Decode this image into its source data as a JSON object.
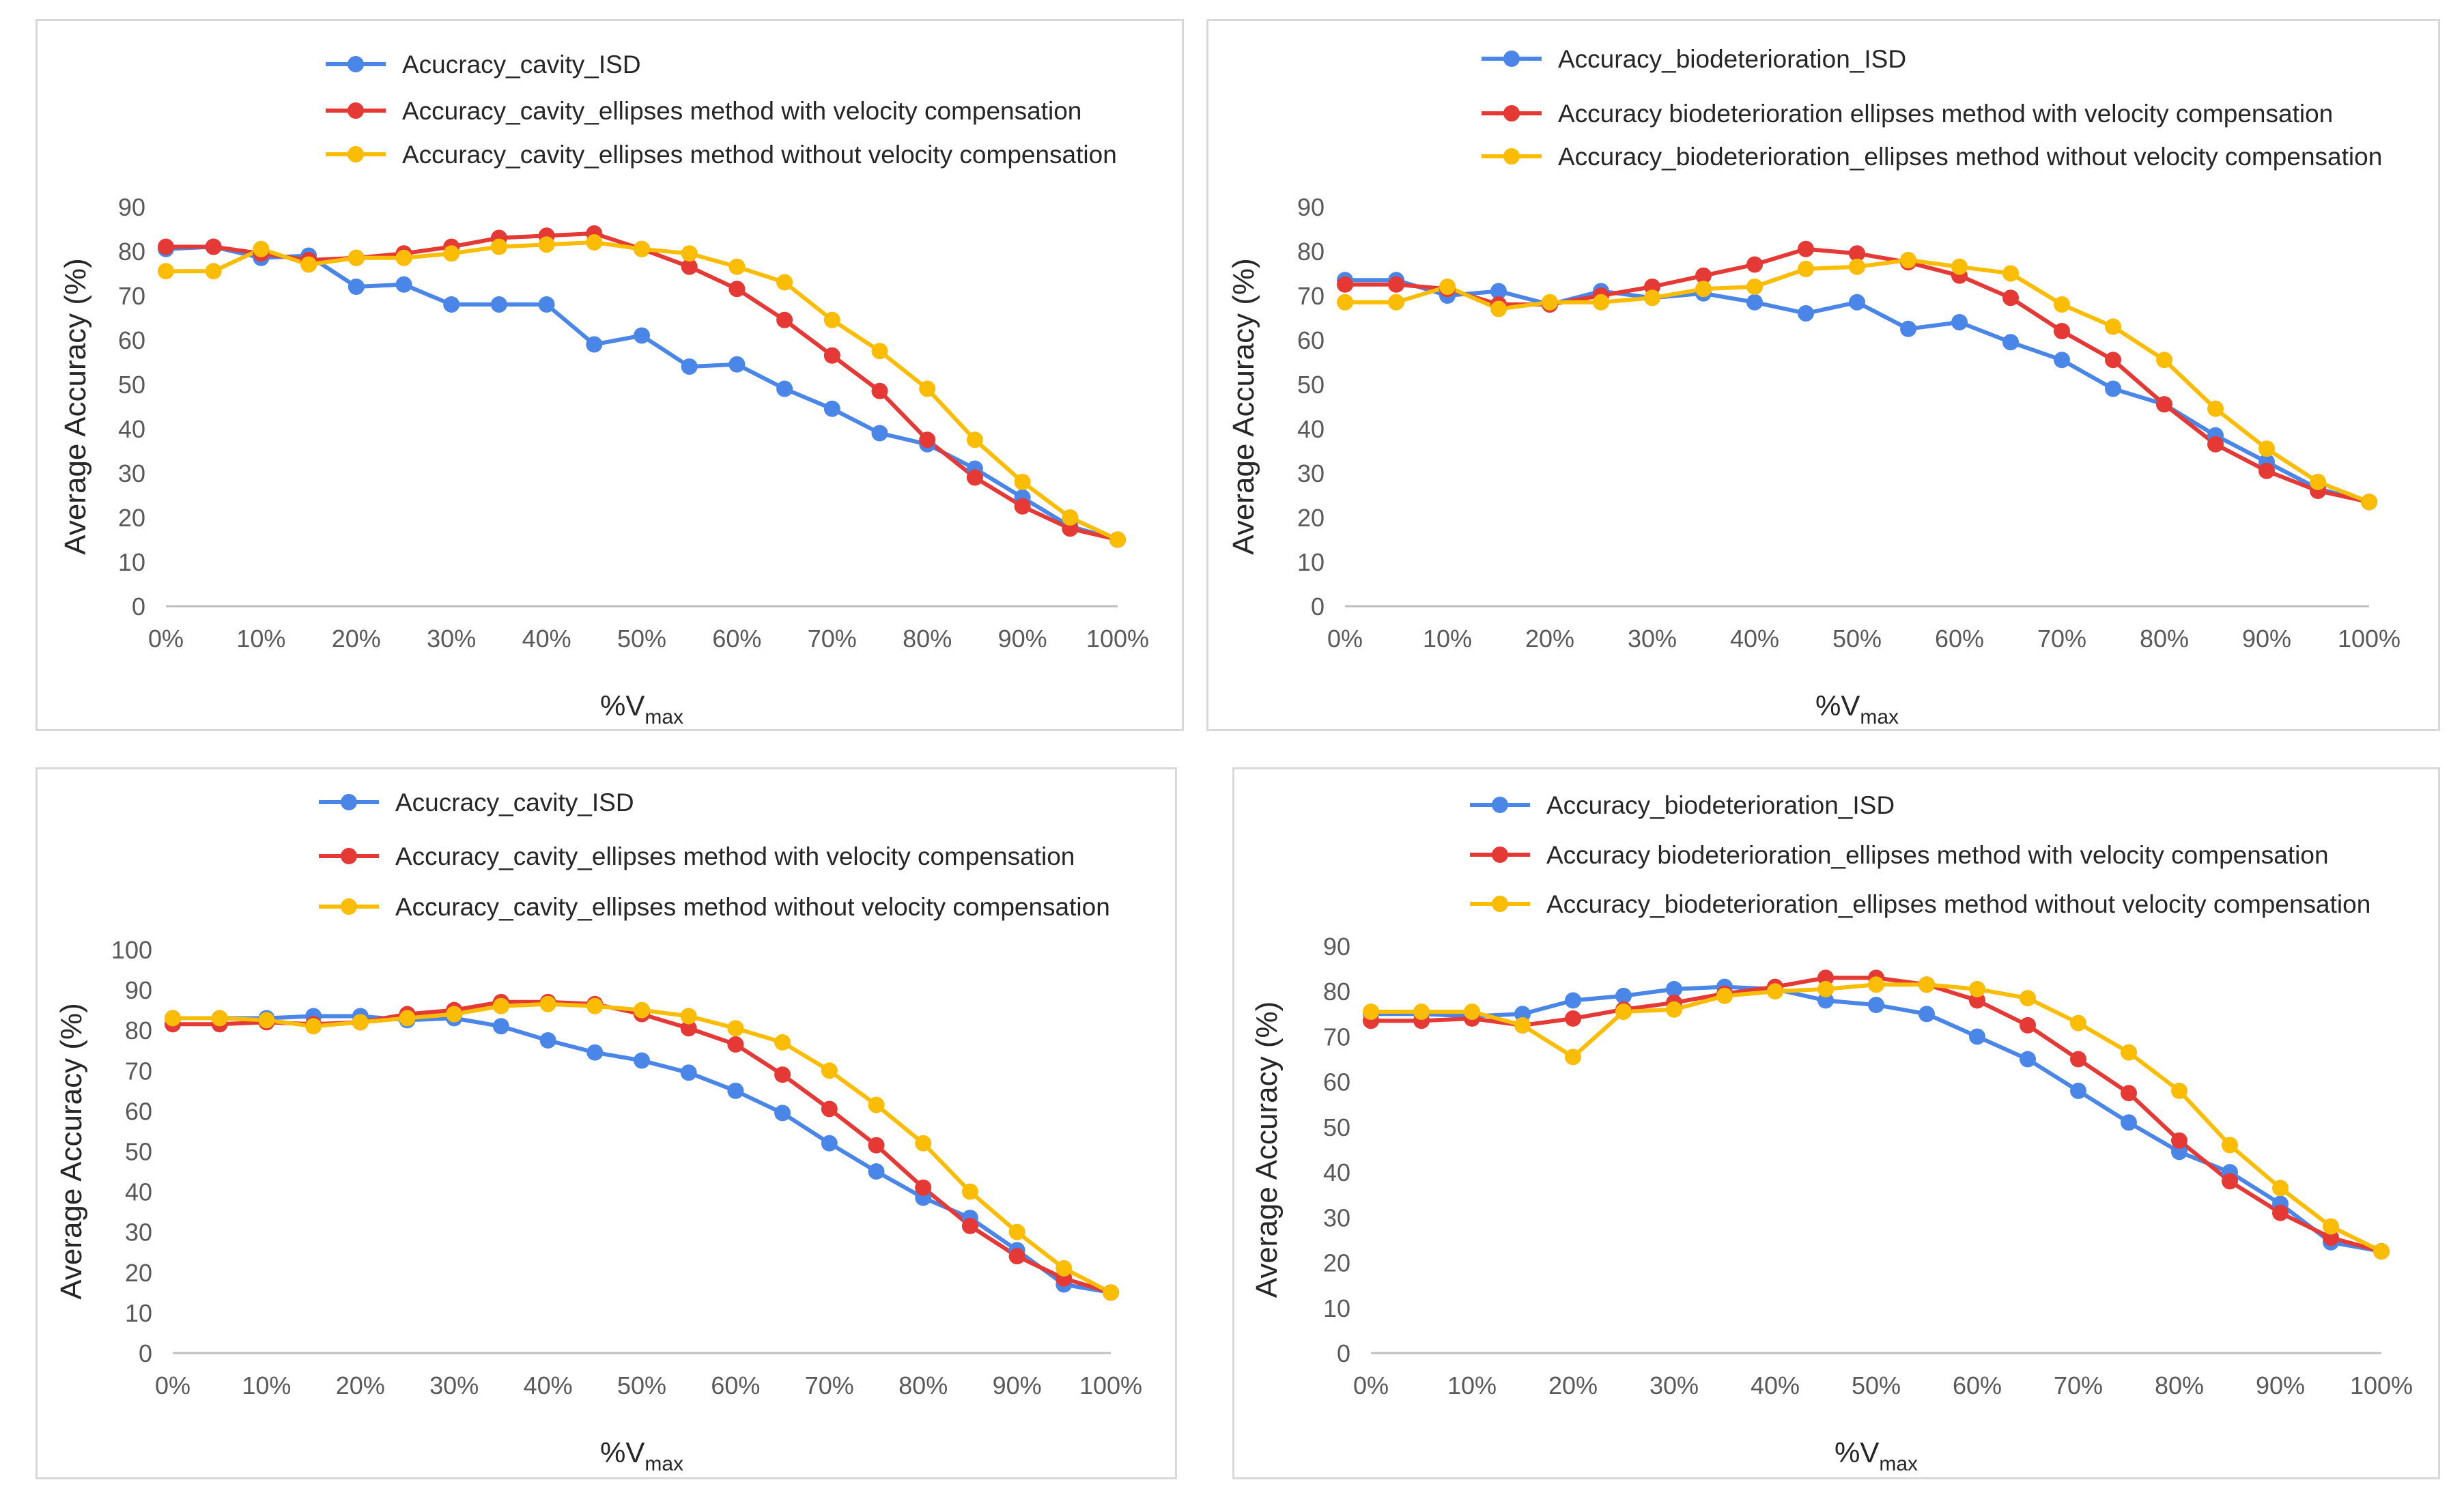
{
  "colors": {
    "isd": "#4a86e8",
    "with_comp": "#e53935",
    "without_comp": "#fbbc04",
    "axis": "#bfbfbf",
    "text": "#595959"
  },
  "chart_data": [
    {
      "type": "line",
      "x": [
        "0%",
        "5%",
        "10%",
        "15%",
        "20%",
        "25%",
        "30%",
        "35%",
        "40%",
        "45%",
        "50%",
        "55%",
        "60%",
        "65%",
        "70%",
        "75%",
        "80%",
        "85%",
        "90%",
        "95%",
        "100%"
      ],
      "x_ticks": [
        "0%",
        "10%",
        "20%",
        "30%",
        "40%",
        "50%",
        "60%",
        "70%",
        "80%",
        "90%",
        "100%"
      ],
      "xlabel": "%V",
      "xlabel_sub": "max",
      "ylabel": "Average Accuracy (%)",
      "ylim": [
        0,
        90
      ],
      "y_ticks": [
        0,
        10,
        20,
        30,
        40,
        50,
        60,
        70,
        80,
        90
      ],
      "legend_position": "top",
      "series": [
        {
          "name": "Acucracy_cavity_ISD",
          "color": "#4a86e8",
          "values": [
            80.5,
            81,
            78.5,
            79,
            72,
            72.5,
            68,
            68,
            68,
            59,
            61,
            54,
            54.5,
            49,
            44.5,
            39,
            36.5,
            31,
            24.5,
            18,
            15
          ]
        },
        {
          "name": "Accuracy_cavity_ellipses method with velocity compensation",
          "color": "#e53935",
          "values": [
            81,
            81,
            79.5,
            78,
            78.5,
            79.5,
            81,
            83,
            83.5,
            84,
            80.5,
            76.5,
            71.5,
            64.5,
            56.5,
            48.5,
            37.5,
            29,
            22.5,
            17.5,
            15
          ]
        },
        {
          "name": "Accuracy_cavity_ellipses method without velocity compensation",
          "color": "#fbbc04",
          "values": [
            75.5,
            75.5,
            80.5,
            77,
            78.5,
            78.5,
            79.5,
            81,
            81.5,
            82,
            80.5,
            79.5,
            76.5,
            73,
            64.5,
            57.5,
            49,
            37.5,
            28,
            20,
            15
          ]
        }
      ]
    },
    {
      "type": "line",
      "x": [
        "0%",
        "5%",
        "10%",
        "15%",
        "20%",
        "25%",
        "30%",
        "35%",
        "40%",
        "45%",
        "50%",
        "55%",
        "60%",
        "65%",
        "70%",
        "75%",
        "80%",
        "85%",
        "90%",
        "95%",
        "100%"
      ],
      "x_ticks": [
        "0%",
        "10%",
        "20%",
        "30%",
        "40%",
        "50%",
        "60%",
        "70%",
        "80%",
        "90%",
        "100%"
      ],
      "xlabel": "%V",
      "xlabel_sub": "max",
      "ylabel": "Average Accuracy (%)",
      "ylim": [
        0,
        90
      ],
      "y_ticks": [
        0,
        10,
        20,
        30,
        40,
        50,
        60,
        70,
        80,
        90
      ],
      "legend_position": "top",
      "series": [
        {
          "name": "Accuracy_biodeterioration_ISD",
          "color": "#4a86e8",
          "values": [
            73.5,
            73.5,
            70,
            71,
            68,
            71,
            69.5,
            70.5,
            68.5,
            66,
            68.5,
            62.5,
            64,
            59.5,
            55.5,
            49,
            45.5,
            38.5,
            32.5,
            26.5,
            23.5
          ]
        },
        {
          "name": "Accuracy biodeterioration  ellipses method with velocity compensation",
          "color": "#e53935",
          "values": [
            72.5,
            72.5,
            71.5,
            68,
            68,
            70,
            72,
            74.5,
            77,
            80.5,
            79.5,
            77.5,
            74.5,
            69.5,
            62,
            55.5,
            45.5,
            36.5,
            30.5,
            26,
            23.5
          ]
        },
        {
          "name": "Accuracy_biodeterioration_ellipses method without velocity compensation",
          "color": "#fbbc04",
          "values": [
            68.5,
            68.5,
            72,
            67,
            68.5,
            68.5,
            69.5,
            71.5,
            72,
            76,
            76.5,
            78,
            76.5,
            75,
            68,
            63,
            55.5,
            44.5,
            35.5,
            28,
            23.5
          ]
        }
      ]
    },
    {
      "type": "line",
      "x": [
        "0%",
        "5%",
        "10%",
        "15%",
        "20%",
        "25%",
        "30%",
        "35%",
        "40%",
        "45%",
        "50%",
        "55%",
        "60%",
        "65%",
        "70%",
        "75%",
        "80%",
        "85%",
        "90%",
        "95%",
        "100%"
      ],
      "x_ticks": [
        "0%",
        "10%",
        "20%",
        "30%",
        "40%",
        "50%",
        "60%",
        "70%",
        "80%",
        "90%",
        "100%"
      ],
      "xlabel": "%V",
      "xlabel_sub": "max",
      "ylabel": "Average Accuracy (%)",
      "ylim": [
        0,
        100
      ],
      "y_ticks": [
        0,
        10,
        20,
        30,
        40,
        50,
        60,
        70,
        80,
        90,
        100
      ],
      "legend_position": "top",
      "series": [
        {
          "name": "Acucracy_cavity_ISD",
          "color": "#4a86e8",
          "values": [
            83,
            83,
            83,
            83.5,
            83.5,
            82.5,
            83,
            81,
            77.5,
            74.5,
            72.5,
            69.5,
            65,
            59.5,
            52,
            45,
            38.5,
            33.5,
            25.5,
            17,
            15
          ]
        },
        {
          "name": "Accuracy_cavity_ellipses method with velocity compensation",
          "color": "#e53935",
          "values": [
            81.5,
            81.5,
            82,
            81.5,
            82,
            84,
            85,
            87,
            87,
            86.5,
            84,
            80.5,
            76.5,
            69,
            60.5,
            51.5,
            41,
            31.5,
            24,
            18.5,
            15
          ]
        },
        {
          "name": "Accuracy_cavity_ellipses method without velocity compensation",
          "color": "#fbbc04",
          "values": [
            83,
            83,
            82.5,
            81,
            82,
            83,
            84,
            86,
            86.5,
            86,
            85,
            83.5,
            80.5,
            77,
            70,
            61.5,
            52,
            40,
            30,
            21,
            15
          ]
        }
      ]
    },
    {
      "type": "line",
      "x": [
        "0%",
        "5%",
        "10%",
        "15%",
        "20%",
        "25%",
        "30%",
        "35%",
        "40%",
        "45%",
        "50%",
        "55%",
        "60%",
        "65%",
        "70%",
        "75%",
        "80%",
        "85%",
        "90%",
        "95%",
        "100%"
      ],
      "x_ticks": [
        "0%",
        "10%",
        "20%",
        "30%",
        "40%",
        "50%",
        "60%",
        "70%",
        "80%",
        "90%",
        "100%"
      ],
      "xlabel": "%V",
      "xlabel_sub": "max",
      "ylabel": "Average Accuracy (%)",
      "ylim": [
        0,
        90
      ],
      "y_ticks": [
        0,
        10,
        20,
        30,
        40,
        50,
        60,
        70,
        80,
        90
      ],
      "legend_position": "top",
      "series": [
        {
          "name": "Accuracy_biodeterioration_ISD",
          "color": "#4a86e8",
          "values": [
            75,
            75,
            74.5,
            75,
            78,
            79,
            80.5,
            81,
            80.5,
            78,
            77,
            75,
            70,
            65,
            58,
            51,
            44.5,
            40,
            33,
            24.5,
            22.5
          ]
        },
        {
          "name": "Accuracy biodeterioration_ellipses method with velocity compensation",
          "color": "#e53935",
          "values": [
            73.5,
            73.5,
            74,
            72.5,
            74,
            76,
            77.5,
            79.5,
            81,
            83,
            83,
            81.5,
            78,
            72.5,
            65,
            57.5,
            47,
            38,
            31,
            25.5,
            22.5
          ]
        },
        {
          "name": "Accuracy_biodeterioration_ellipses method without velocity compensation",
          "color": "#fbbc04",
          "values": [
            75.5,
            75.5,
            75.5,
            72.5,
            65.5,
            75.5,
            76,
            79,
            80,
            80.5,
            81.5,
            81.5,
            80.5,
            78.5,
            73,
            66.5,
            58,
            46,
            36.5,
            28,
            22.5
          ]
        }
      ]
    }
  ]
}
